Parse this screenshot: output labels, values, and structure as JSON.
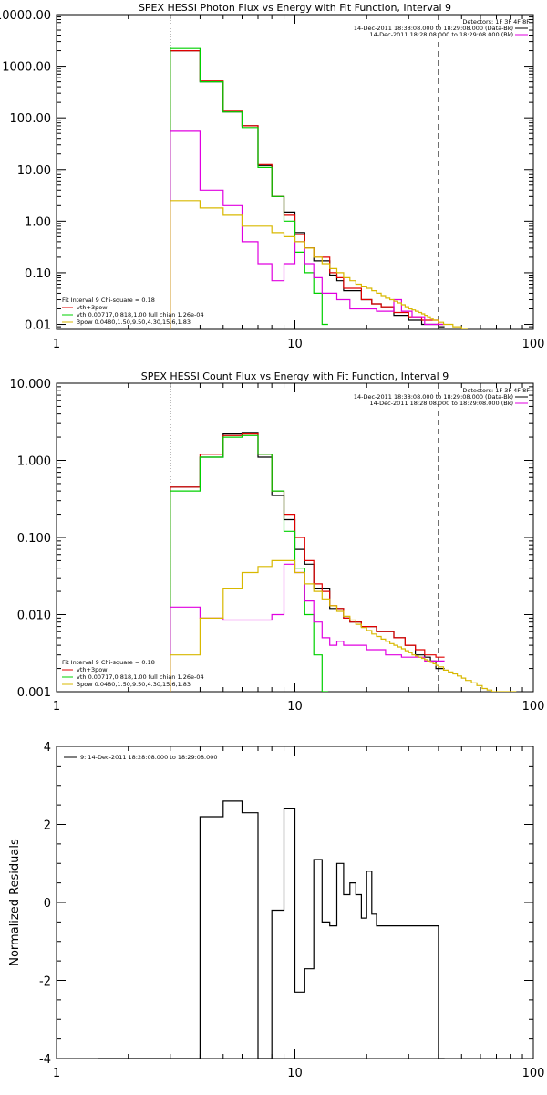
{
  "chart_data": [
    {
      "type": "line",
      "title": "SPEX HESSI Photon Flux vs Energy with Fit Function, Interval 9",
      "xscale": "log",
      "yscale": "log",
      "xlim": [
        1,
        100
      ],
      "ylim": [
        0.008,
        10000
      ],
      "x_ticks": [
        1,
        10,
        100
      ],
      "x_tick_labels": [
        "1",
        "10",
        "100"
      ],
      "y_ticks": [
        0.01,
        0.1,
        1,
        10,
        100,
        1000,
        10000
      ],
      "y_tick_labels": [
        "0.01",
        "0.10",
        "1.00",
        "10.00",
        "100.00",
        "1000.00",
        "10000.00"
      ],
      "vlines": [
        {
          "x": 3,
          "style": "dotted"
        },
        {
          "x": 40,
          "style": "dashed"
        }
      ],
      "info_lines": [
        "Detectors: 1F 3F 4F 8F"
      ],
      "legend_top": [
        {
          "label": "14-Dec-2011 18:38:08.000 to 18:29:08.000 (Data-Bk)",
          "color": "#000000"
        },
        {
          "label": "14-Dec-2011 18:28:08.000 to 18:29:08.000 (Bk)",
          "color": "#e000e0"
        }
      ],
      "legend_bottom": [
        {
          "label": "Fit Interval 9   Chi-square = 0.18",
          "color": null
        },
        {
          "label": "vth+3pow",
          "color": "#e00000"
        },
        {
          "label": "vth 0.00717,0.818,1.00   full chian 1.26e-04",
          "color": "#00d000"
        },
        {
          "label": "3pow 0.0480,1.50,9.50,4.30,15.6,1.83",
          "color": "#d8b800"
        }
      ],
      "series": [
        {
          "color": "#000000",
          "x": [
            3,
            4,
            5,
            6,
            7,
            8,
            9,
            10,
            11,
            12,
            13,
            14,
            15,
            16,
            17,
            18,
            19,
            20,
            21,
            22,
            23,
            24,
            25,
            26,
            27,
            28,
            29,
            30,
            31,
            32,
            33,
            34,
            35,
            36,
            37,
            38,
            39,
            40
          ],
          "values": [
            2000,
            500,
            130,
            70,
            12,
            3,
            1.5,
            0.6,
            0.3,
            0.17,
            0.17,
            0.09,
            0.07,
            0.045,
            0.045,
            0.045,
            0.03,
            0.03,
            0.025,
            0.025,
            0.022,
            0.022,
            0.022,
            0.015,
            0.015,
            0.015,
            0.015,
            0.012,
            0.012,
            0.012,
            0.012,
            0.01,
            0.01,
            0.01,
            0.01,
            0.01,
            0.01,
            0.009
          ]
        },
        {
          "color": "#e00000",
          "x": [
            3,
            4,
            5,
            6,
            7,
            8,
            9,
            10,
            11,
            12,
            13,
            14,
            15,
            16,
            17,
            18,
            19,
            20,
            21,
            22,
            23,
            24,
            25,
            26,
            27,
            28,
            29,
            30,
            31,
            32,
            33,
            34,
            35,
            36,
            37,
            38,
            39,
            40
          ],
          "values": [
            2000,
            520,
            135,
            70,
            12.5,
            3,
            1.3,
            0.55,
            0.3,
            0.2,
            0.2,
            0.1,
            0.08,
            0.05,
            0.05,
            0.05,
            0.03,
            0.03,
            0.025,
            0.025,
            0.022,
            0.022,
            0.022,
            0.017,
            0.017,
            0.017,
            0.017,
            0.014,
            0.014,
            0.014,
            0.014,
            0.012,
            0.012,
            0.012,
            0.012,
            0.012,
            0.012,
            0.01
          ]
        },
        {
          "color": "#00d000",
          "x": [
            3,
            4,
            5,
            6,
            7,
            8,
            9,
            10,
            11,
            12,
            13
          ],
          "values": [
            2200,
            500,
            130,
            65,
            11,
            3,
            1,
            0.25,
            0.1,
            0.04,
            0.01
          ]
        },
        {
          "color": "#e000e0",
          "x": [
            3,
            4,
            5,
            6,
            7,
            8,
            9,
            10,
            11,
            12,
            13,
            14,
            15,
            16,
            17,
            18,
            19,
            20,
            21,
            22,
            23,
            24,
            25,
            26,
            27,
            28,
            29,
            30,
            31,
            32,
            33,
            34,
            35,
            36,
            37,
            38,
            39,
            40
          ],
          "values": [
            55,
            4,
            2,
            0.4,
            0.15,
            0.07,
            0.15,
            0.4,
            0.15,
            0.08,
            0.04,
            0.04,
            0.03,
            0.03,
            0.02,
            0.02,
            0.02,
            0.02,
            0.02,
            0.018,
            0.018,
            0.018,
            0.018,
            0.03,
            0.03,
            0.018,
            0.018,
            0.018,
            0.014,
            0.014,
            0.014,
            0.014,
            0.01,
            0.01,
            0.01,
            0.01,
            0.01,
            0.01
          ]
        },
        {
          "color": "#d8b800",
          "x": [
            3,
            4,
            5,
            6,
            7,
            8,
            9,
            10,
            11,
            12,
            13,
            14,
            15,
            16,
            17,
            18,
            19,
            20,
            21,
            22,
            23,
            24,
            25,
            26,
            27,
            28,
            29,
            30,
            31,
            32,
            33,
            34,
            35,
            36,
            37,
            38,
            39,
            40,
            42,
            44,
            46,
            48,
            50
          ],
          "values": [
            2.5,
            1.8,
            1.3,
            0.8,
            0.8,
            0.6,
            0.5,
            0.4,
            0.3,
            0.2,
            0.15,
            0.12,
            0.1,
            0.08,
            0.07,
            0.06,
            0.055,
            0.05,
            0.045,
            0.04,
            0.036,
            0.032,
            0.03,
            0.028,
            0.026,
            0.024,
            0.022,
            0.02,
            0.019,
            0.018,
            0.017,
            0.016,
            0.015,
            0.014,
            0.013,
            0.012,
            0.012,
            0.011,
            0.01,
            0.01,
            0.009,
            0.009,
            0.008
          ]
        }
      ]
    },
    {
      "type": "line",
      "title": "SPEX HESSI Count Flux vs Energy with Fit Function, Interval 9",
      "xscale": "log",
      "yscale": "log",
      "xlim": [
        1,
        100
      ],
      "ylim": [
        0.001,
        10
      ],
      "x_ticks": [
        1,
        10,
        100
      ],
      "x_tick_labels": [
        "1",
        "10",
        "100"
      ],
      "y_ticks": [
        0.001,
        0.01,
        0.1,
        1,
        10
      ],
      "y_tick_labels": [
        "0.001",
        "0.010",
        "0.100",
        "1.000",
        "10.000"
      ],
      "vlines": [
        {
          "x": 3,
          "style": "dotted"
        },
        {
          "x": 40,
          "style": "dashed"
        }
      ],
      "info_lines": [
        "Detectors: 1F 3F 4F 8F"
      ],
      "legend_top": [
        {
          "label": "14-Dec-2011 18:38:08.000 to 18:29:08.000 (Data-Bk)",
          "color": "#000000"
        },
        {
          "label": "14-Dec-2011 18:28:08.000 to 18:29:08.000 (Bk)",
          "color": "#e000e0"
        }
      ],
      "legend_bottom": [
        {
          "label": "Fit Interval 9   Chi-square = 0.18",
          "color": null
        },
        {
          "label": "vth+3pow",
          "color": "#e00000"
        },
        {
          "label": "vth 0.00717,0.818,1.00   full chian 1.26e-04",
          "color": "#00d000"
        },
        {
          "label": "3pow 0.0480,1.50,9.50,4.30,15.6,1.83",
          "color": "#d8b800"
        }
      ],
      "series": [
        {
          "color": "#000000",
          "x": [
            3,
            4,
            5,
            6,
            7,
            8,
            9,
            10,
            11,
            12,
            13,
            14,
            15,
            16,
            17,
            18,
            19,
            20,
            21,
            22,
            23,
            24,
            25,
            26,
            27,
            28,
            29,
            30,
            31,
            32,
            33,
            34,
            35,
            36,
            37,
            38,
            39,
            40
          ],
          "values": [
            0.45,
            1.1,
            2.2,
            2.3,
            1.1,
            0.35,
            0.17,
            0.07,
            0.045,
            0.022,
            0.022,
            0.012,
            0.012,
            0.009,
            0.008,
            0.008,
            0.007,
            0.007,
            0.007,
            0.006,
            0.006,
            0.006,
            0.006,
            0.005,
            0.005,
            0.005,
            0.004,
            0.004,
            0.004,
            0.003,
            0.003,
            0.003,
            0.0028,
            0.0028,
            0.0025,
            0.0025,
            0.002,
            0.002
          ]
        },
        {
          "color": "#e00000",
          "x": [
            3,
            4,
            5,
            6,
            7,
            8,
            9,
            10,
            11,
            12,
            13,
            14,
            15,
            16,
            17,
            18,
            19,
            20,
            21,
            22,
            23,
            24,
            25,
            26,
            27,
            28,
            29,
            30,
            31,
            32,
            33,
            34,
            35,
            36,
            37,
            38,
            39,
            40
          ],
          "values": [
            0.45,
            1.2,
            2.1,
            2.2,
            1.2,
            0.4,
            0.2,
            0.1,
            0.05,
            0.025,
            0.02,
            0.013,
            0.012,
            0.009,
            0.008,
            0.008,
            0.007,
            0.007,
            0.007,
            0.006,
            0.006,
            0.006,
            0.006,
            0.005,
            0.005,
            0.005,
            0.004,
            0.004,
            0.004,
            0.0035,
            0.0035,
            0.0035,
            0.003,
            0.003,
            0.003,
            0.003,
            0.0028,
            0.0028
          ]
        },
        {
          "color": "#00d000",
          "x": [
            3,
            4,
            5,
            6,
            7,
            8,
            9,
            10,
            11,
            12,
            13
          ],
          "values": [
            0.4,
            1.1,
            2,
            2.1,
            1.2,
            0.4,
            0.12,
            0.04,
            0.01,
            0.003,
            0.001
          ]
        },
        {
          "color": "#e000e0",
          "x": [
            3,
            4,
            5,
            6,
            7,
            8,
            9,
            10,
            11,
            12,
            13,
            14,
            15,
            16,
            17,
            18,
            19,
            20,
            21,
            22,
            23,
            24,
            25,
            26,
            27,
            28,
            29,
            30,
            31,
            32,
            33,
            34,
            35,
            36,
            37,
            38,
            39,
            40
          ],
          "values": [
            0.0125,
            0.009,
            0.0085,
            0.0085,
            0.0085,
            0.01,
            0.045,
            0.035,
            0.015,
            0.008,
            0.005,
            0.004,
            0.0045,
            0.004,
            0.004,
            0.004,
            0.004,
            0.0035,
            0.0035,
            0.0035,
            0.0035,
            0.003,
            0.003,
            0.003,
            0.003,
            0.0028,
            0.0028,
            0.0028,
            0.0028,
            0.0028,
            0.0028,
            0.0028,
            0.0025,
            0.0025,
            0.0025,
            0.0025,
            0.0025,
            0.0025
          ]
        },
        {
          "color": "#d8b800",
          "x": [
            3,
            4,
            5,
            6,
            7,
            8,
            9,
            10,
            11,
            12,
            13,
            14,
            15,
            16,
            17,
            18,
            19,
            20,
            21,
            22,
            23,
            24,
            25,
            26,
            27,
            28,
            29,
            30,
            31,
            32,
            33,
            34,
            35,
            36,
            37,
            38,
            39,
            40,
            42,
            44,
            46,
            48,
            50,
            52,
            55,
            58,
            61,
            64,
            67,
            70,
            73,
            76,
            80
          ],
          "values": [
            0.003,
            0.009,
            0.022,
            0.035,
            0.042,
            0.05,
            0.05,
            0.035,
            0.025,
            0.02,
            0.016,
            0.013,
            0.011,
            0.0095,
            0.0085,
            0.0075,
            0.0068,
            0.0062,
            0.0056,
            0.0052,
            0.0048,
            0.0045,
            0.0042,
            0.004,
            0.0038,
            0.0036,
            0.0034,
            0.0032,
            0.003,
            0.0029,
            0.0028,
            0.0027,
            0.0026,
            0.0025,
            0.0024,
            0.0023,
            0.0022,
            0.0021,
            0.0019,
            0.0018,
            0.0017,
            0.0016,
            0.0015,
            0.0014,
            0.0013,
            0.0012,
            0.0011,
            0.00105,
            0.001,
            0.00095,
            0.0009,
            0.00085,
            0.0008
          ]
        }
      ]
    },
    {
      "type": "line",
      "title": "",
      "xlabel": "",
      "ylabel": "Normalized Residuals",
      "xscale": "log",
      "yscale": "linear",
      "xlim": [
        1,
        100
      ],
      "ylim": [
        -4,
        4
      ],
      "x_ticks": [
        1,
        10,
        100
      ],
      "x_tick_labels": [
        "1",
        "10",
        "100"
      ],
      "y_ticks": [
        -4,
        -2,
        0,
        2,
        4
      ],
      "y_tick_labels": [
        "-4",
        "-2",
        "0",
        "2",
        "4"
      ],
      "legend_top": [
        {
          "label": "9: 14-Dec-2011 18:28:08.000 to 18:29:08.000",
          "color": "#000000"
        }
      ],
      "series": [
        {
          "color": "#000000",
          "x": [
            1.5,
            3,
            4,
            5,
            6,
            7,
            8,
            9,
            10,
            11,
            12,
            13,
            14,
            15,
            16,
            17,
            18,
            19,
            20,
            21,
            22,
            23,
            24,
            25,
            26,
            27,
            28,
            29,
            30,
            31,
            32,
            33,
            34,
            35,
            36,
            37,
            38,
            39,
            40
          ],
          "values": [
            -4,
            -4,
            2.2,
            2.6,
            2.3,
            -4,
            -0.2,
            2.4,
            -2.3,
            -1.7,
            1.1,
            -0.5,
            -0.6,
            1,
            0.2,
            0.5,
            0.2,
            -0.4,
            0.8,
            -0.3,
            -0.6,
            -0.6,
            -0.6,
            -0.6,
            -0.6,
            -0.6,
            -0.6,
            -0.6,
            -0.6,
            -0.6,
            -0.6,
            -0.6,
            -0.6,
            -0.6,
            -0.6,
            -0.6,
            -0.6,
            -0.6,
            -4
          ]
        }
      ]
    }
  ]
}
